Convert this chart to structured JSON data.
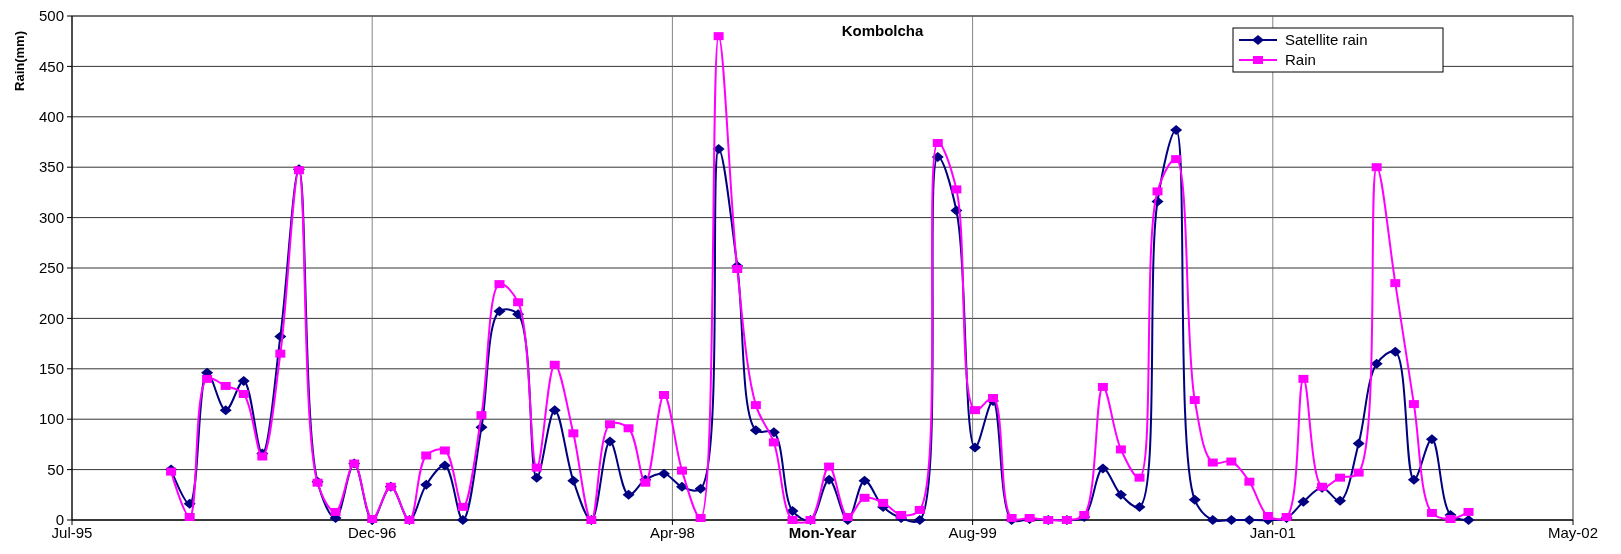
{
  "chart_data": {
    "type": "line",
    "title": "Kombolcha",
    "xlabel": "Mon-Year",
    "ylabel": "Rain(mm)",
    "x": [
      "1996-01",
      "1996-02",
      "1996-03",
      "1996-04",
      "1996-05",
      "1996-06",
      "1996-07",
      "1996-08",
      "1996-09",
      "1996-10",
      "1996-11",
      "1996-12",
      "1997-01",
      "1997-02",
      "1997-03",
      "1997-04",
      "1997-05",
      "1997-06",
      "1997-07",
      "1997-08",
      "1997-09",
      "1997-10",
      "1997-11",
      "1997-12",
      "1998-01",
      "1998-02",
      "1998-03",
      "1998-04",
      "1998-05",
      "1998-06",
      "1998-07",
      "1998-08",
      "1998-09",
      "1998-10",
      "1998-11",
      "1998-12",
      "1999-01",
      "1999-02",
      "1999-03",
      "1999-04",
      "1999-05",
      "1999-06",
      "1999-07",
      "1999-08",
      "1999-09",
      "1999-10",
      "1999-11",
      "1999-12",
      "2000-01",
      "2000-02",
      "2000-03",
      "2000-04",
      "2000-05",
      "2000-06",
      "2000-07",
      "2000-08",
      "2000-09",
      "2000-10",
      "2000-11",
      "2000-12",
      "2001-01",
      "2001-02",
      "2001-03",
      "2001-04",
      "2001-05",
      "2001-06",
      "2001-07",
      "2001-08",
      "2001-09",
      "2001-10",
      "2001-11",
      "2001-12"
    ],
    "series": [
      {
        "name": "Satellite rain",
        "color": "#000080",
        "marker": "diamond",
        "values": [
          50,
          16,
          146,
          109,
          138,
          66,
          182,
          348,
          38,
          2,
          56,
          0,
          33,
          0,
          35,
          54,
          0,
          92,
          207,
          204,
          42,
          109,
          39,
          0,
          78,
          25,
          40,
          46,
          33,
          31,
          368,
          252,
          89,
          87,
          9,
          0,
          40,
          0,
          39,
          13,
          2,
          0,
          360,
          307,
          72,
          118,
          0,
          1,
          0,
          0,
          3,
          51,
          25,
          13,
          316,
          387,
          20,
          0,
          0,
          0,
          0,
          2,
          18,
          32,
          19,
          76,
          155,
          167,
          40,
          80,
          5,
          0
        ]
      },
      {
        "name": "Rain",
        "color": "#ff00ff",
        "marker": "square",
        "values": [
          48,
          3,
          140,
          133,
          125,
          63,
          165,
          347,
          37,
          8,
          56,
          1,
          33,
          0,
          64,
          69,
          13,
          104,
          234,
          216,
          52,
          154,
          86,
          0,
          95,
          91,
          37,
          124,
          49,
          2,
          480,
          249,
          114,
          77,
          0,
          0,
          53,
          3,
          22,
          17,
          5,
          10,
          374,
          328,
          109,
          121,
          2,
          2,
          0,
          0,
          5,
          132,
          70,
          42,
          326,
          358,
          119,
          57,
          58,
          38,
          4,
          3,
          140,
          33,
          42,
          47,
          350,
          235,
          115,
          7,
          1,
          8
        ]
      }
    ],
    "xlim": [
      "1995-07-20",
      "2002-05-24"
    ],
    "xticks": [
      {
        "value": "1995-07-20",
        "label": "Jul-95"
      },
      {
        "value": "1996-12-01",
        "label": "Dec-96"
      },
      {
        "value": "1998-04-15",
        "label": "Apr-98"
      },
      {
        "value": "1999-08-28",
        "label": "Aug-99"
      },
      {
        "value": "2001-01-09",
        "label": "Jan-01"
      },
      {
        "value": "2002-05-24",
        "label": "May-02"
      }
    ],
    "ylim": [
      0,
      500
    ],
    "yticks": [
      0,
      50,
      100,
      150,
      200,
      250,
      300,
      350,
      400,
      450,
      500
    ],
    "grid": true,
    "legend": "top right",
    "line_style": "solid"
  }
}
